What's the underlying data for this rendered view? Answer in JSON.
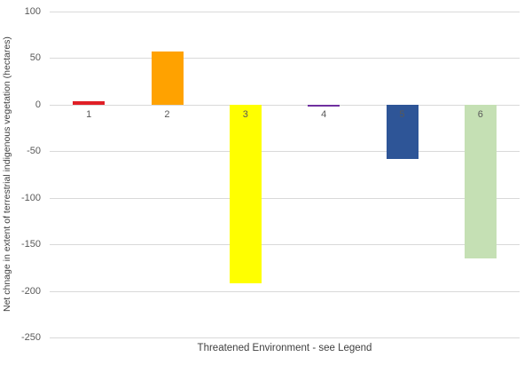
{
  "chart_data": {
    "type": "bar",
    "title": "",
    "xlabel": "Threatened Environment - see Legend",
    "ylabel": "Net chnage in extent of terrestrial indigenous vegetation (hectares)",
    "categories": [
      "1",
      "2",
      "3",
      "4",
      "5",
      "6"
    ],
    "values": [
      4,
      57,
      -192,
      -2,
      -58,
      -165
    ],
    "colors": [
      "#e01f26",
      "#ffa200",
      "#ffff00",
      "#7030a0",
      "#2e5597",
      "#c5e0b4"
    ],
    "ylim": [
      -250,
      100
    ],
    "yticks": [
      100,
      50,
      0,
      -50,
      -100,
      -150,
      -200,
      -250
    ],
    "grid": true,
    "legend": "none",
    "background": "#ffffff",
    "gridline_color": "#d9d9d9",
    "tick_label_color": "#595959",
    "axis_title_color": "#404040"
  }
}
